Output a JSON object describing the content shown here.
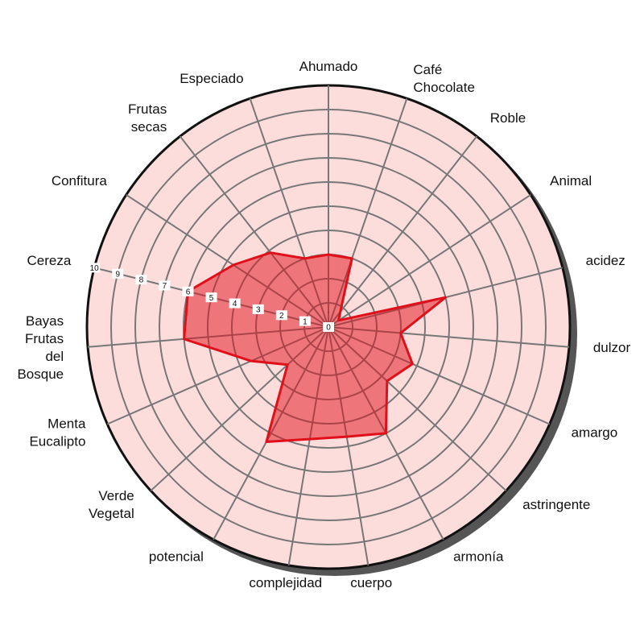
{
  "chart_data": {
    "type": "radar",
    "categories": [
      [
        "Ahumado"
      ],
      [
        "Café",
        "Chocolate"
      ],
      [
        "Roble"
      ],
      [
        "Animal"
      ],
      [
        "acidez"
      ],
      [
        "dulzor"
      ],
      [
        "amargo"
      ],
      [
        "astringente"
      ],
      [
        "armonía"
      ],
      [
        "cuerpo"
      ],
      [
        "complejidad"
      ],
      [
        "potencial"
      ],
      [
        "Verde",
        "Vegetal"
      ],
      [
        "Menta",
        "Eucalipto"
      ],
      [
        "Bayas",
        "Frutas",
        "del",
        "Bosque"
      ],
      [
        "Cereza"
      ],
      [
        "Confitura"
      ],
      [
        "Frutas",
        "secas"
      ],
      [
        "Especiado"
      ]
    ],
    "values": [
      3,
      3,
      0.8,
      0.5,
      5,
      3,
      3.8,
      3.3,
      5,
      4.6,
      4.7,
      5.4,
      2.3,
      3.5,
      6,
      6,
      4.7,
      3.9,
      3
    ],
    "color": "#e0101a",
    "rlim": [
      0,
      10
    ],
    "rticks": [
      0,
      1,
      2,
      3,
      4,
      5,
      6,
      7,
      8,
      9,
      10
    ],
    "tick_axis": 15
  }
}
